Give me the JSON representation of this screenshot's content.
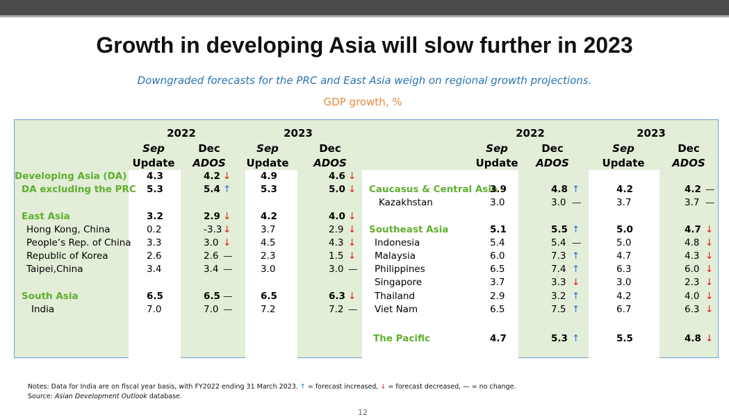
{
  "title": "Growth in developing Asia will slow further in 2023",
  "subtitle": "Downgraded forecasts for the PRC and East Asia weigh on regional growth projections.",
  "unit_label": "GDP growth, %",
  "headers": {
    "year_2022": "2022",
    "year_2023": "2023",
    "sep": "Sep",
    "update": "Update",
    "dec": "Dec",
    "ados": "ADOS"
  },
  "arrows": {
    "up": "↑",
    "down": "↓",
    "flat": "—"
  },
  "left_rows": [
    {
      "name": "Developing Asia (DA)",
      "style": "green",
      "a": "4.3",
      "b": "4.2",
      "bt": "down",
      "c": "4.9",
      "d": "4.6",
      "dt": "down"
    },
    {
      "name": "DA excluding the PRC",
      "style": "green",
      "a": "5.3",
      "b": "5.4",
      "bt": "up",
      "c": "5.3",
      "d": "5.0",
      "dt": "down"
    },
    {
      "name": "East Asia",
      "style": "green",
      "a": "3.2",
      "b": "2.9",
      "bt": "down",
      "c": "4.2",
      "d": "4.0",
      "dt": "down"
    },
    {
      "name": "Hong Kong, China",
      "style": "plain",
      "a": "0.2",
      "b": "-3.3",
      "bt": "down",
      "c": "3.7",
      "d": "2.9",
      "dt": "down"
    },
    {
      "name": "People’s Rep. of China",
      "style": "plain",
      "a": "3.3",
      "b": "3.0",
      "bt": "down",
      "c": "4.5",
      "d": "4.3",
      "dt": "down"
    },
    {
      "name": "Republic of Korea",
      "style": "plain",
      "a": "2.6",
      "b": "2.6",
      "bt": "flat",
      "c": "2.3",
      "d": "1.5",
      "dt": "down"
    },
    {
      "name": "Taipei,China",
      "style": "plain",
      "a": "3.4",
      "b": "3.4",
      "bt": "flat",
      "c": "3.0",
      "d": "3.0",
      "dt": "flat"
    },
    {
      "name": "South Asia",
      "style": "green",
      "a": "6.5",
      "b": "6.5",
      "bt": "flat",
      "c": "6.5",
      "d": "6.3",
      "dt": "down"
    },
    {
      "name": "India",
      "style": "plain",
      "a": "7.0",
      "b": "7.0",
      "bt": "flat",
      "c": "7.2",
      "d": "7.2",
      "dt": "flat"
    }
  ],
  "right_rows": [
    {
      "name": "Caucasus & Central Asia",
      "style": "green",
      "a": "3.9",
      "b": "4.8",
      "bt": "up",
      "c": "4.2",
      "d": "4.2",
      "dt": "flat"
    },
    {
      "name": "Kazakhstan",
      "style": "plain",
      "a": "3.0",
      "b": "3.0",
      "bt": "flat",
      "c": "3.7",
      "d": "3.7",
      "dt": "flat"
    },
    {
      "name": "Southeast Asia",
      "style": "green",
      "a": "5.1",
      "b": "5.5",
      "bt": "up",
      "c": "5.0",
      "d": "4.7",
      "dt": "down"
    },
    {
      "name": "Indonesia",
      "style": "plain",
      "a": "5.4",
      "b": "5.4",
      "bt": "flat",
      "c": "5.0",
      "d": "4.8",
      "dt": "down"
    },
    {
      "name": "Malaysia",
      "style": "plain",
      "a": "6.0",
      "b": "7.3",
      "bt": "up",
      "c": "4.7",
      "d": "4.3",
      "dt": "down"
    },
    {
      "name": "Philippines",
      "style": "plain",
      "a": "6.5",
      "b": "7.4",
      "bt": "up",
      "c": "6.3",
      "d": "6.0",
      "dt": "down"
    },
    {
      "name": "Singapore",
      "style": "plain",
      "a": "3.7",
      "b": "3.3",
      "bt": "down",
      "c": "3.0",
      "d": "2.3",
      "dt": "down"
    },
    {
      "name": "Thailand",
      "style": "plain",
      "a": "2.9",
      "b": "3.2",
      "bt": "up",
      "c": "4.2",
      "d": "4.0",
      "dt": "down"
    },
    {
      "name": "Viet Nam",
      "style": "plain",
      "a": "6.5",
      "b": "7.5",
      "bt": "up",
      "c": "6.7",
      "d": "6.3",
      "dt": "down"
    },
    {
      "name": "The Pacific",
      "style": "green",
      "a": "4.7",
      "b": "5.3",
      "bt": "up",
      "c": "5.5",
      "d": "4.8",
      "dt": "down"
    }
  ],
  "notes": {
    "line1_prefix": "Notes: Data for India are on fiscal year basis, with FY2022 ending 31 March 2023.",
    "up_label": "= forecast increased,",
    "down_label": "= forecast decreased,",
    "flat_label": "= no change.",
    "source_prefix": "Source:",
    "source_name": "Asian Development Outlook",
    "source_suffix": "database."
  },
  "page_number": "12"
}
